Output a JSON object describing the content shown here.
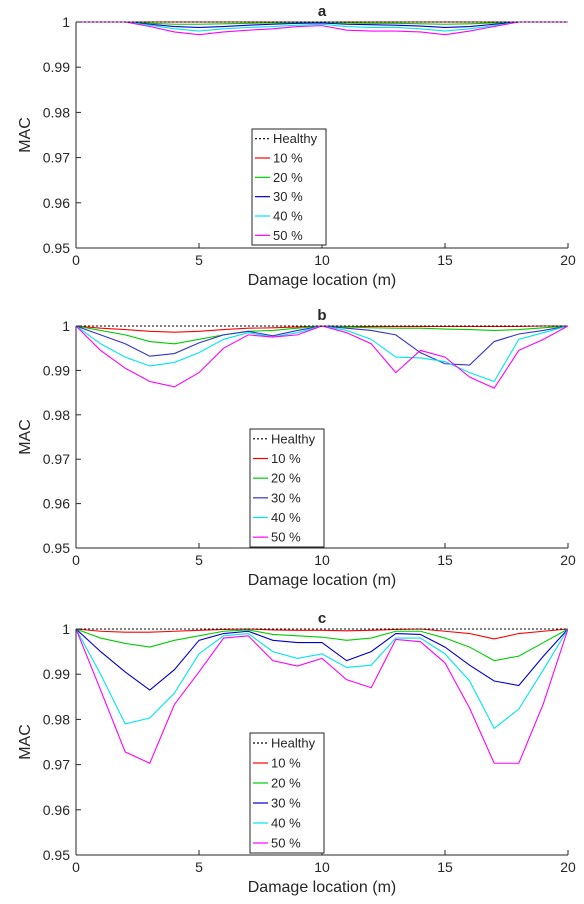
{
  "chart_data": [
    {
      "type": "line",
      "title": "a",
      "xlabel": "Damage location (m)",
      "ylabel": "MAC",
      "xlim": [
        0,
        20
      ],
      "ylim": [
        0.95,
        1
      ],
      "xticks": [
        "0",
        "5",
        "10",
        "15",
        "20"
      ],
      "yticks": [
        "0.95",
        "0.96",
        "0.97",
        "0.98",
        "0.99",
        "1"
      ],
      "grid": false,
      "legend": "bottom-center",
      "x": [
        0,
        1,
        2,
        3,
        4,
        5,
        6,
        7,
        8,
        9,
        10,
        11,
        12,
        13,
        14,
        15,
        16,
        17,
        18,
        19,
        20
      ],
      "series": [
        {
          "name": "Healthy",
          "color": "#000000",
          "dashed": true,
          "values": [
            1,
            1,
            1,
            1,
            1,
            1,
            1,
            1,
            1,
            1,
            1,
            1,
            1,
            1,
            1,
            1,
            1,
            1,
            1,
            1,
            1
          ]
        },
        {
          "name": "10 %",
          "color": "#ff0000",
          "values": [
            1,
            1,
            1,
            1,
            1,
            1,
            1,
            1,
            1,
            1,
            1,
            1,
            1,
            1,
            1,
            1,
            1,
            1,
            1,
            1,
            1
          ]
        },
        {
          "name": "20 %",
          "color": "#00cc00",
          "values": [
            1,
            1,
            1,
            0.9997,
            0.9995,
            0.9995,
            0.9996,
            0.9997,
            0.9998,
            0.9999,
            1,
            0.9998,
            0.9997,
            0.9997,
            0.9996,
            0.9995,
            0.9996,
            0.9998,
            1,
            1,
            1
          ]
        },
        {
          "name": "30 %",
          "color": "#0000cc",
          "values": [
            1,
            1,
            1,
            0.9995,
            0.999,
            0.9988,
            0.999,
            0.9993,
            0.9995,
            0.9997,
            0.9998,
            0.9995,
            0.9994,
            0.9993,
            0.9991,
            0.9988,
            0.999,
            0.9995,
            1,
            1,
            1
          ]
        },
        {
          "name": "40 %",
          "color": "#00e5ee",
          "values": [
            1,
            1,
            1,
            0.9993,
            0.9985,
            0.998,
            0.9985,
            0.9988,
            0.999,
            0.9993,
            0.9995,
            0.999,
            0.9988,
            0.9988,
            0.9985,
            0.998,
            0.9985,
            0.9992,
            1,
            1,
            1
          ]
        },
        {
          "name": "50 %",
          "color": "#ff00ff",
          "values": [
            1,
            1,
            1,
            0.999,
            0.9978,
            0.9972,
            0.9978,
            0.9982,
            0.9985,
            0.999,
            0.9992,
            0.9982,
            0.998,
            0.998,
            0.9978,
            0.9972,
            0.998,
            0.999,
            1,
            1,
            1
          ]
        }
      ]
    },
    {
      "type": "line",
      "title": "b",
      "xlabel": "Damage location (m)",
      "ylabel": "MAC",
      "xlim": [
        0,
        20
      ],
      "ylim": [
        0.95,
        1
      ],
      "xticks": [
        "0",
        "5",
        "10",
        "15",
        "20"
      ],
      "yticks": [
        "0.95",
        "0.96",
        "0.97",
        "0.98",
        "0.99",
        "1"
      ],
      "grid": false,
      "legend": "bottom-center",
      "x": [
        0,
        1,
        2,
        3,
        4,
        5,
        6,
        7,
        8,
        9,
        10,
        11,
        12,
        13,
        14,
        15,
        16,
        17,
        18,
        19,
        20
      ],
      "series": [
        {
          "name": "Healthy",
          "color": "#000000",
          "dashed": true,
          "values": [
            1,
            1,
            1,
            1,
            1,
            1,
            1,
            1,
            1,
            1,
            1,
            1,
            1,
            1,
            1,
            1,
            1,
            1,
            1,
            1,
            1
          ]
        },
        {
          "name": "10 %",
          "color": "#ff0000",
          "values": [
            1,
            0.9995,
            0.9992,
            0.9988,
            0.9986,
            0.9988,
            0.9992,
            0.9995,
            0.9996,
            0.9998,
            1,
            0.9999,
            0.9999,
            0.9999,
            0.9999,
            0.9999,
            0.9999,
            0.9999,
            0.9999,
            1,
            1
          ]
        },
        {
          "name": "20 %",
          "color": "#00cc00",
          "values": [
            1,
            0.999,
            0.998,
            0.9965,
            0.996,
            0.997,
            0.998,
            0.9988,
            0.999,
            0.9995,
            1,
            0.9998,
            0.9996,
            0.9995,
            0.9995,
            0.9993,
            0.9992,
            0.999,
            0.9992,
            0.9996,
            1
          ]
        },
        {
          "name": "30 %",
          "color": "#3333cc",
          "values": [
            1,
            0.998,
            0.996,
            0.9932,
            0.9938,
            0.9962,
            0.998,
            0.9988,
            0.9978,
            0.999,
            1,
            0.9995,
            0.999,
            0.998,
            0.994,
            0.9915,
            0.9912,
            0.9965,
            0.9982,
            0.999,
            1
          ]
        },
        {
          "name": "40 %",
          "color": "#00e5ee",
          "values": [
            1,
            0.996,
            0.993,
            0.991,
            0.9918,
            0.994,
            0.997,
            0.9985,
            0.9975,
            0.9985,
            1,
            0.999,
            0.997,
            0.993,
            0.9928,
            0.992,
            0.9895,
            0.9875,
            0.997,
            0.9985,
            1
          ]
        },
        {
          "name": "50 %",
          "color": "#ff00ff",
          "values": [
            1,
            0.9945,
            0.9905,
            0.9875,
            0.9863,
            0.9895,
            0.995,
            0.998,
            0.9975,
            0.998,
            1,
            0.9985,
            0.996,
            0.9895,
            0.9945,
            0.993,
            0.9885,
            0.986,
            0.9945,
            0.997,
            1
          ]
        }
      ]
    },
    {
      "type": "line",
      "title": "c",
      "xlabel": "Damage location (m)",
      "ylabel": "MAC",
      "xlim": [
        0,
        20
      ],
      "ylim": [
        0.95,
        1
      ],
      "xticks": [
        "0",
        "5",
        "10",
        "15",
        "20"
      ],
      "yticks": [
        "0.95",
        "0.96",
        "0.97",
        "0.98",
        "0.99",
        "1"
      ],
      "grid": false,
      "legend": "bottom-center",
      "x": [
        0,
        1,
        2,
        3,
        4,
        5,
        6,
        7,
        8,
        9,
        10,
        11,
        12,
        13,
        14,
        15,
        16,
        17,
        18,
        19,
        20
      ],
      "series": [
        {
          "name": "Healthy",
          "color": "#000000",
          "dashed": true,
          "values": [
            1,
            1,
            1,
            1,
            1,
            1,
            1,
            1,
            1,
            1,
            1,
            1,
            1,
            1,
            1,
            1,
            1,
            1,
            1,
            1,
            1
          ]
        },
        {
          "name": "10 %",
          "color": "#ff0000",
          "values": [
            1,
            0.9995,
            0.9993,
            0.9993,
            0.9995,
            0.9997,
            0.9999,
            1,
            0.9998,
            0.9997,
            0.9997,
            0.9996,
            0.9997,
            0.9999,
            1,
            0.9995,
            0.999,
            0.9978,
            0.999,
            0.9995,
            1
          ]
        },
        {
          "name": "20 %",
          "color": "#00cc00",
          "values": [
            1,
            0.998,
            0.9968,
            0.996,
            0.9975,
            0.9985,
            0.9995,
            0.9998,
            0.9988,
            0.9985,
            0.9982,
            0.9975,
            0.998,
            0.9995,
            0.9995,
            0.998,
            0.996,
            0.993,
            0.994,
            0.997,
            1
          ]
        },
        {
          "name": "30 %",
          "color": "#0000cc",
          "values": [
            1,
            0.995,
            0.9905,
            0.9865,
            0.991,
            0.9975,
            0.999,
            0.9995,
            0.9975,
            0.997,
            0.997,
            0.993,
            0.995,
            0.999,
            0.9988,
            0.996,
            0.992,
            0.9885,
            0.9875,
            0.994,
            1
          ]
        },
        {
          "name": "40 %",
          "color": "#00e5ee",
          "values": [
            1,
            0.99,
            0.979,
            0.9803,
            0.9858,
            0.9945,
            0.9985,
            0.999,
            0.995,
            0.9935,
            0.9945,
            0.9915,
            0.992,
            0.998,
            0.998,
            0.9945,
            0.9885,
            0.978,
            0.9823,
            0.991,
            1
          ]
        },
        {
          "name": "50 %",
          "color": "#ff00ff",
          "values": [
            1,
            0.9865,
            0.9728,
            0.9703,
            0.9833,
            0.9905,
            0.998,
            0.9985,
            0.993,
            0.9918,
            0.9935,
            0.9888,
            0.987,
            0.9977,
            0.9972,
            0.9925,
            0.9825,
            0.9703,
            0.9703,
            0.9835,
            1
          ]
        }
      ]
    }
  ]
}
